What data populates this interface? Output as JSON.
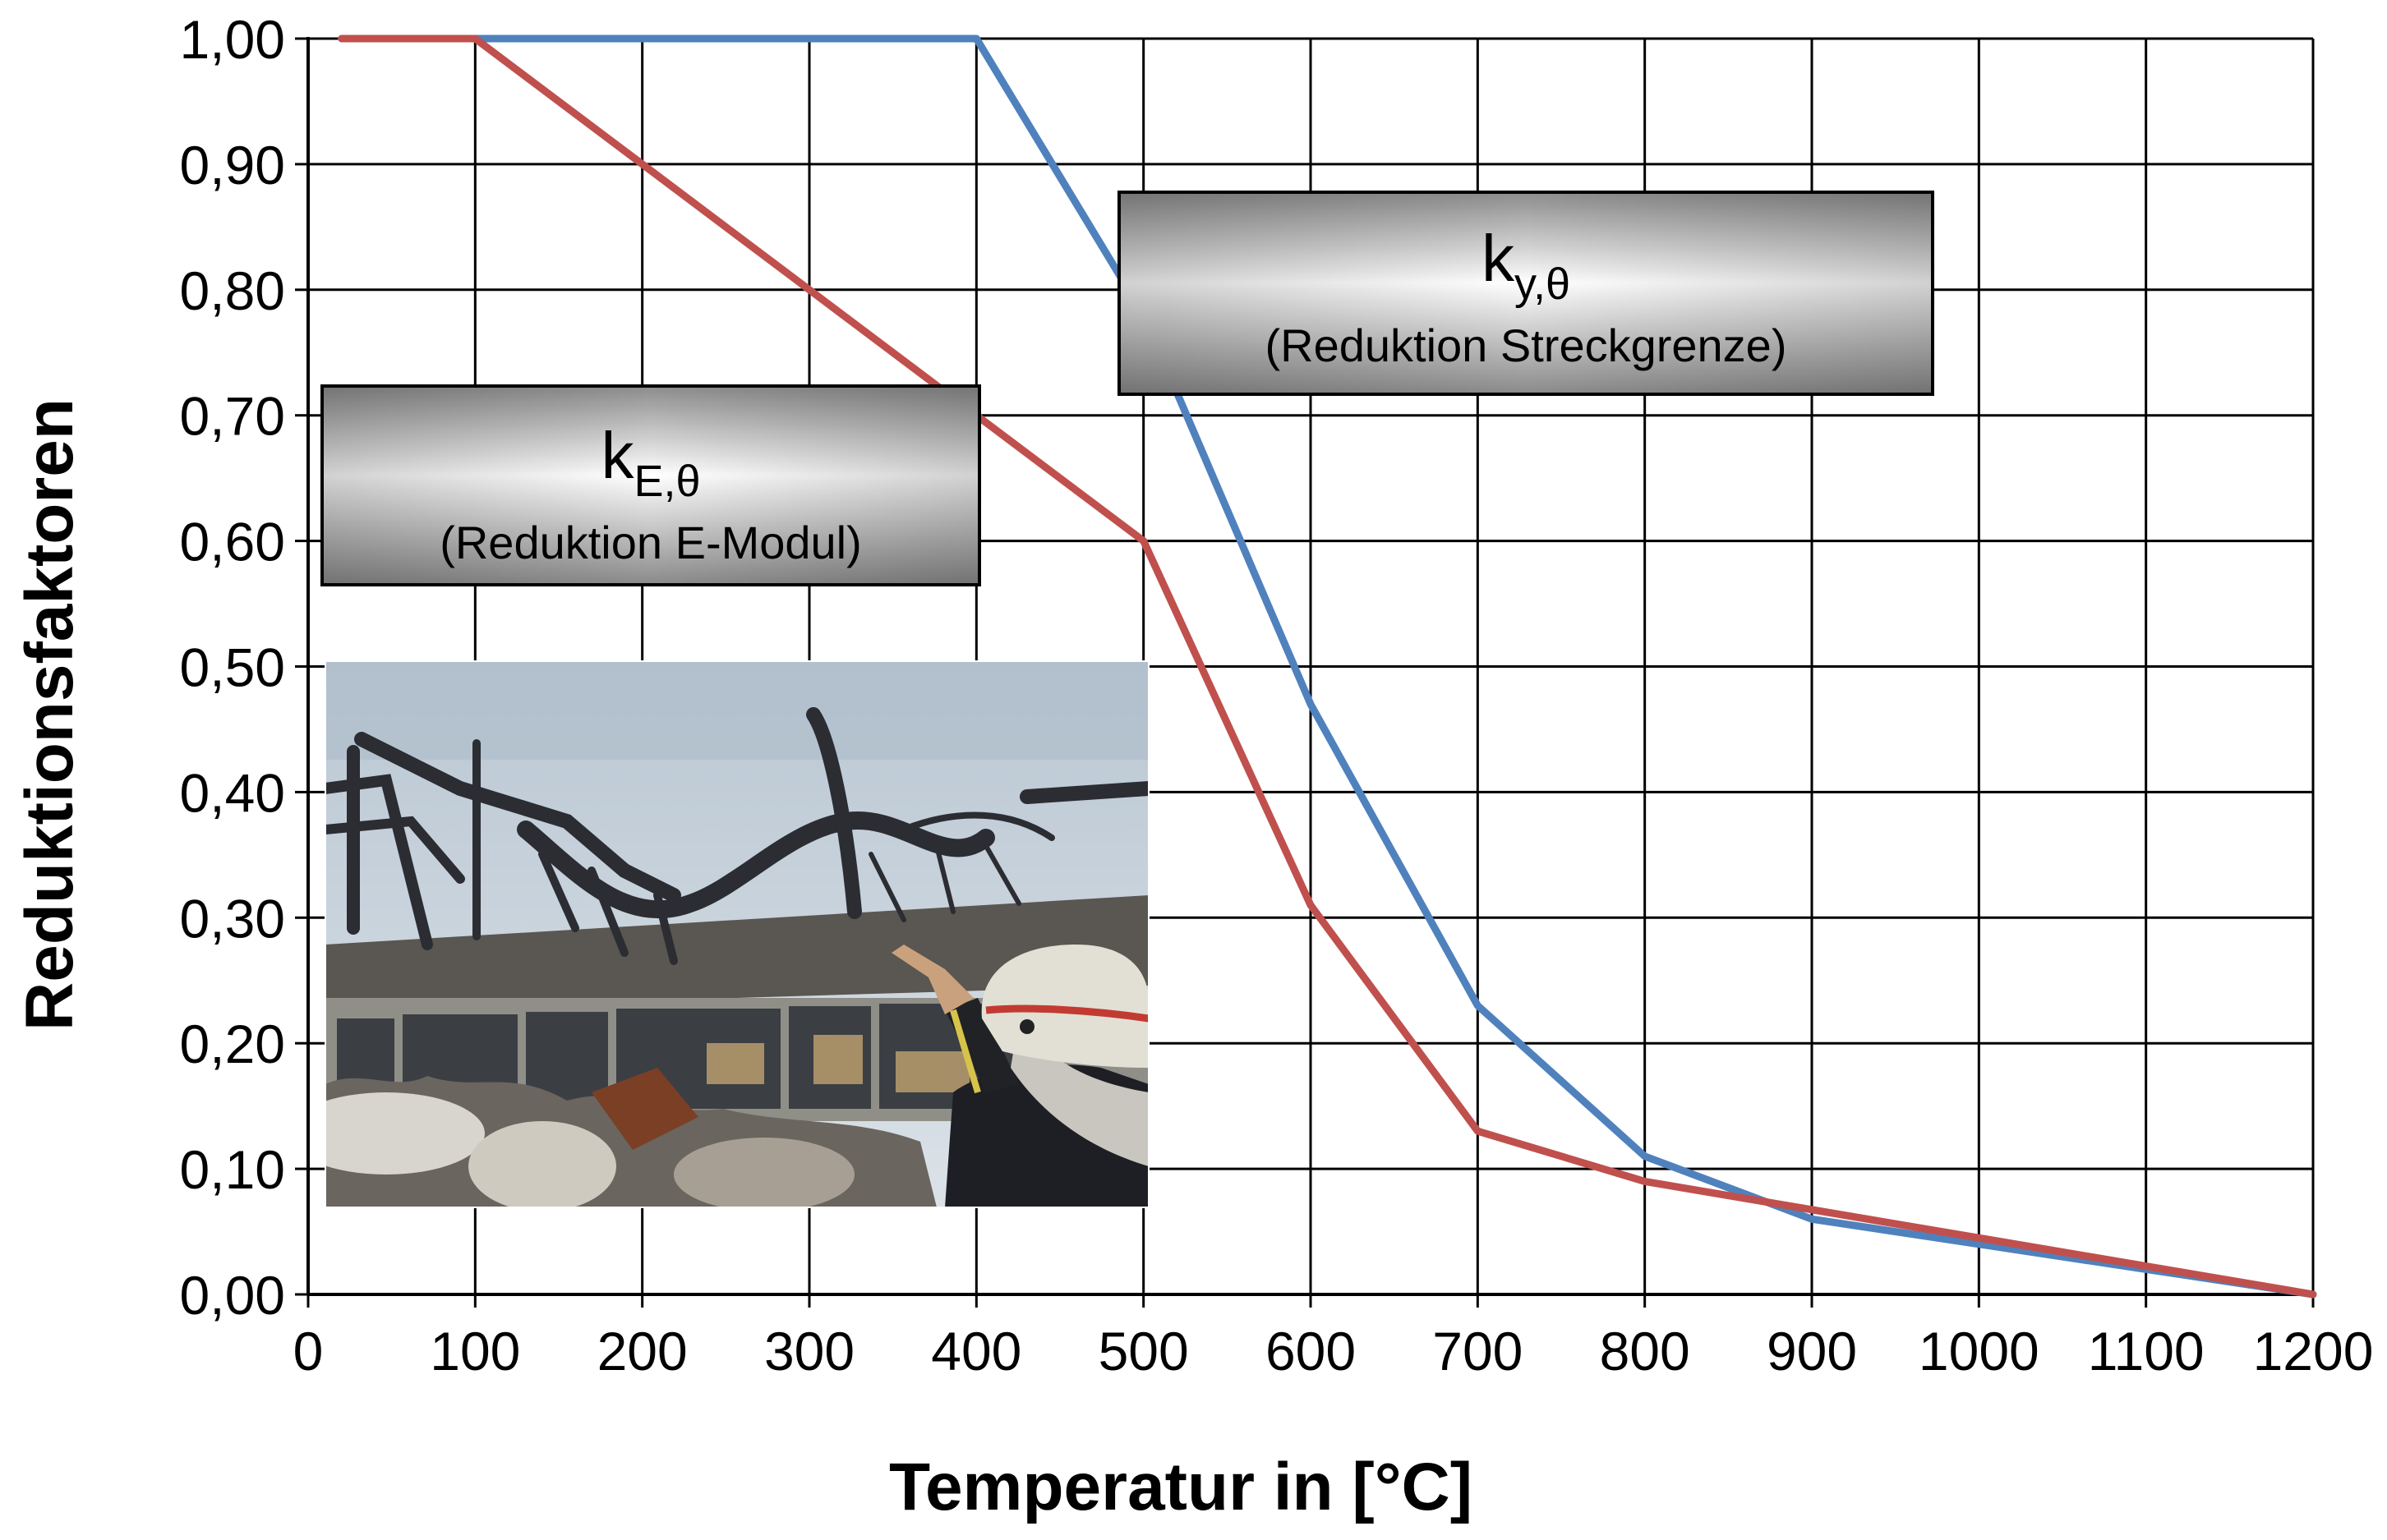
{
  "chart_data": {
    "type": "line",
    "xlabel": "Temperatur in [°C]",
    "ylabel": "Reduktionsfaktoren",
    "xlim": [
      0,
      1200
    ],
    "ylim": [
      0,
      1
    ],
    "grid": true,
    "x_ticks": [
      "0",
      "100",
      "200",
      "300",
      "400",
      "500",
      "600",
      "700",
      "800",
      "900",
      "1000",
      "1100",
      "1200"
    ],
    "y_ticks": [
      "0,00",
      "0,10",
      "0,20",
      "0,30",
      "0,40",
      "0,50",
      "0,60",
      "0,70",
      "0,80",
      "0,90",
      "1,00"
    ],
    "series": [
      {
        "label": "k_y,θ",
        "color": "#4f81bd",
        "points": [
          [
            20,
            1.0
          ],
          [
            100,
            1.0
          ],
          [
            200,
            1.0
          ],
          [
            300,
            1.0
          ],
          [
            400,
            1.0
          ],
          [
            500,
            0.78
          ],
          [
            600,
            0.47
          ],
          [
            700,
            0.23
          ],
          [
            800,
            0.11
          ],
          [
            900,
            0.06
          ],
          [
            1000,
            0.04
          ],
          [
            1100,
            0.02
          ],
          [
            1200,
            0.0
          ]
        ]
      },
      {
        "label": "k_E,θ",
        "color": "#c0504d",
        "points": [
          [
            20,
            1.0
          ],
          [
            100,
            1.0
          ],
          [
            200,
            0.9
          ],
          [
            300,
            0.8
          ],
          [
            400,
            0.7
          ],
          [
            500,
            0.6
          ],
          [
            600,
            0.31
          ],
          [
            700,
            0.13
          ],
          [
            800,
            0.09
          ],
          [
            900,
            0.0675
          ],
          [
            1000,
            0.045
          ],
          [
            1100,
            0.0225
          ],
          [
            1200,
            0.0
          ]
        ]
      }
    ],
    "annotations": [
      {
        "id": "ky",
        "main": "k",
        "sub": "y,θ",
        "text": "(Reduktion Streckgrenze)"
      },
      {
        "id": "kE",
        "main": "k",
        "sub": "E,θ",
        "text": "(Reduktion E-Modul)"
      }
    ]
  },
  "photo": {
    "icon": "collapsed-steel-roof-fire-photo",
    "colors": {
      "sky": "#c9d3dc",
      "steel": "#2e3036",
      "helmet": "#e2e0d4",
      "helmet_stripe": "#c23b32"
    }
  }
}
